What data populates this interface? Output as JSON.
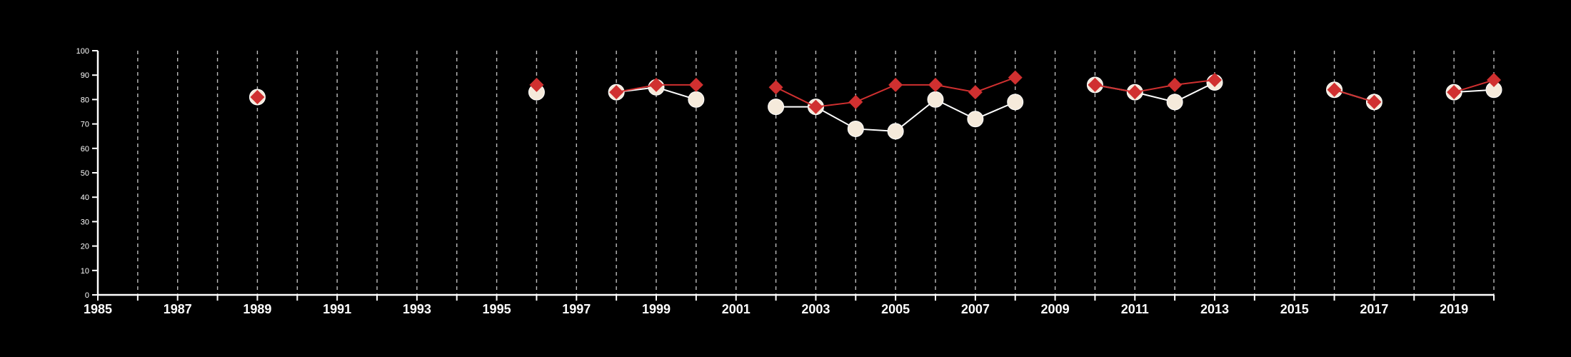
{
  "chart_data": {
    "type": "line",
    "title": "",
    "xlabel": "",
    "ylabel": "",
    "xlim": [
      1985,
      2020
    ],
    "ylim": [
      0,
      100
    ],
    "y_ticks": [
      0,
      10,
      20,
      30,
      40,
      50,
      60,
      70,
      80,
      90,
      100
    ],
    "x_tick_labels": [
      "1985",
      "1987",
      "1989",
      "1991",
      "1993",
      "1995",
      "1997",
      "1999",
      "2001",
      "2003",
      "2005",
      "2007",
      "2009",
      "2011",
      "2013",
      "2015",
      "2017",
      "2019"
    ],
    "grid": "vertical dashed, every year",
    "legend": "none",
    "series": [
      {
        "color": "#f5eadb",
        "stroke": "#ffffff",
        "marker": "circle",
        "points": [
          [
            1989,
            81
          ],
          [
            1996,
            83
          ],
          [
            1998,
            83
          ],
          [
            1999,
            85
          ],
          [
            2000,
            80
          ],
          [
            2002,
            77
          ],
          [
            2003,
            77
          ],
          [
            2004,
            68
          ],
          [
            2005,
            67
          ],
          [
            2006,
            80
          ],
          [
            2007,
            72
          ],
          [
            2008,
            79
          ],
          [
            2010,
            86
          ],
          [
            2011,
            83
          ],
          [
            2012,
            79
          ],
          [
            2013,
            87
          ],
          [
            2016,
            84
          ],
          [
            2017,
            79
          ],
          [
            2019,
            83
          ],
          [
            2020,
            84
          ]
        ]
      },
      {
        "color": "#d03030",
        "stroke": "#d03030",
        "marker": "diamond",
        "points": [
          [
            1989,
            81
          ],
          [
            1996,
            86
          ],
          [
            1998,
            83
          ],
          [
            1999,
            86
          ],
          [
            2000,
            86
          ],
          [
            2002,
            85
          ],
          [
            2003,
            77
          ],
          [
            2004,
            79
          ],
          [
            2005,
            86
          ],
          [
            2006,
            86
          ],
          [
            2007,
            83
          ],
          [
            2008,
            89
          ],
          [
            2010,
            86
          ],
          [
            2011,
            83
          ],
          [
            2012,
            86
          ],
          [
            2013,
            88
          ],
          [
            2016,
            84
          ],
          [
            2017,
            79
          ],
          [
            2019,
            83
          ],
          [
            2020,
            88
          ]
        ]
      }
    ]
  }
}
